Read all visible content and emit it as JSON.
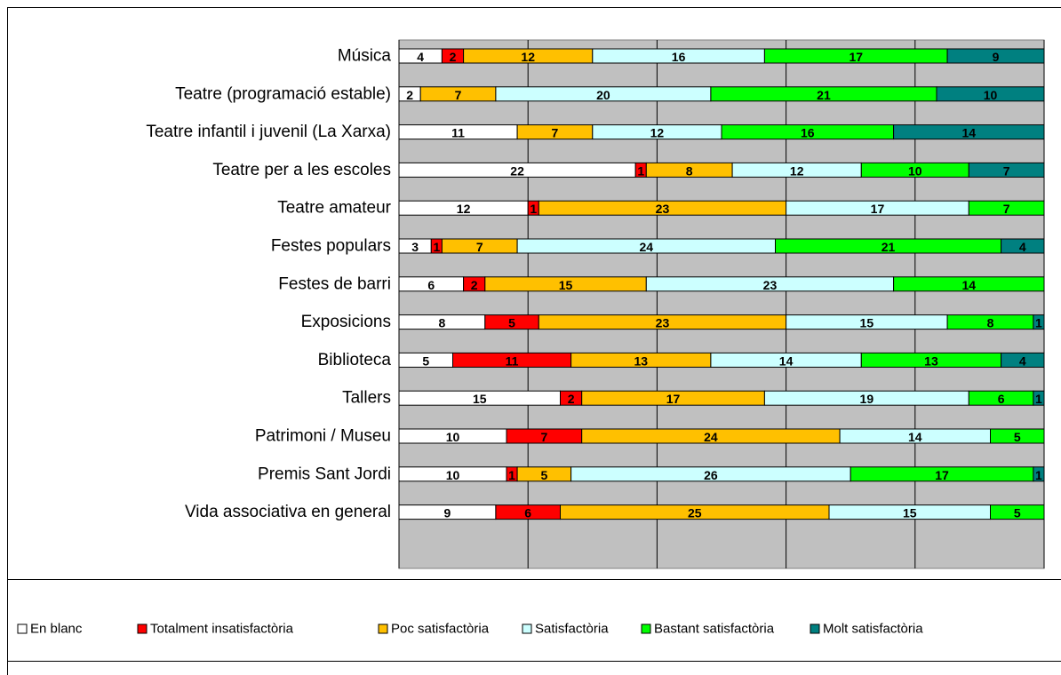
{
  "chart_data": {
    "type": "stacked-bar-horizontal",
    "categories": [
      "Música",
      "Teatre (programació estable)",
      "Teatre infantil i juvenil (La Xarxa)",
      "Teatre per a les escoles",
      "Teatre amateur",
      "Festes populars",
      "Festes de barri",
      "Exposicions",
      "Biblioteca",
      "Tallers",
      "Patrimoni / Museu",
      "Premis Sant Jordi",
      "Vida associativa en general"
    ],
    "series": [
      {
        "name": "En blanc",
        "color": "#ffffff",
        "values": [
          4,
          2,
          11,
          22,
          12,
          3,
          6,
          8,
          5,
          15,
          10,
          10,
          9
        ]
      },
      {
        "name": "Totalment insatisfactòria",
        "color": "#ff0000",
        "values": [
          2,
          null,
          null,
          1,
          1,
          1,
          2,
          5,
          11,
          2,
          7,
          1,
          6
        ]
      },
      {
        "name": "Poc satisfactòria",
        "color": "#ffc000",
        "values": [
          12,
          7,
          7,
          8,
          23,
          7,
          15,
          23,
          13,
          17,
          24,
          5,
          25
        ]
      },
      {
        "name": "Satisfactòria",
        "color": "#ccffff",
        "values": [
          16,
          20,
          12,
          12,
          17,
          24,
          23,
          15,
          14,
          19,
          14,
          26,
          15
        ]
      },
      {
        "name": "Bastant satisfactòria",
        "color": "#00ff00",
        "values": [
          17,
          21,
          16,
          10,
          7,
          21,
          14,
          8,
          13,
          6,
          5,
          17,
          5
        ]
      },
      {
        "name": "Molt satisfactòria",
        "color": "#008080",
        "values": [
          9,
          10,
          14,
          7,
          null,
          4,
          null,
          1,
          4,
          1,
          null,
          1,
          null
        ]
      }
    ],
    "xlim": [
      0,
      60
    ],
    "xticks": [
      0,
      12,
      24,
      36,
      48,
      60
    ],
    "grid": true,
    "legend": "bottom"
  }
}
